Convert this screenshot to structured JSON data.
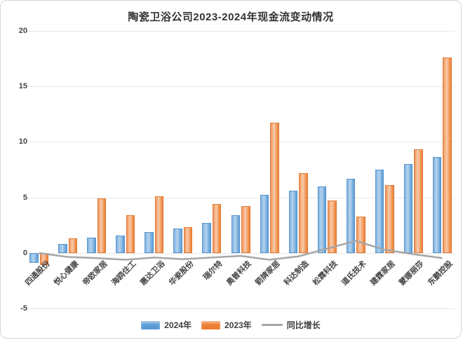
{
  "chart_data": {
    "type": "bar",
    "title": "陶瓷卫浴公司2023-2024年现金流变动情况",
    "categories": [
      "四通股份",
      "悦心健康",
      "帝欧家居",
      "海鸥住工",
      "惠达卫浴",
      "华瓷股份",
      "瑞尔特",
      "奥普科技",
      "箭牌家居",
      "科达制造",
      "松霖科技",
      "道氏技术",
      "建霖家居",
      "蒙娜丽莎",
      "东鹏控股"
    ],
    "series": [
      {
        "name": "2024年",
        "type": "bar",
        "color": "#5B9BD5",
        "values": [
          -0.9,
          0.8,
          1.4,
          1.6,
          1.9,
          2.2,
          2.7,
          3.4,
          5.2,
          5.6,
          6.0,
          6.7,
          7.5,
          8.0,
          8.6
        ]
      },
      {
        "name": "2023年",
        "type": "bar",
        "color": "#ED7D31",
        "values": [
          -1.1,
          1.3,
          4.9,
          3.4,
          5.1,
          2.3,
          4.4,
          4.2,
          11.7,
          7.2,
          4.7,
          3.3,
          6.1,
          9.3,
          17.6
        ]
      },
      {
        "name": "同比增长",
        "type": "line",
        "color": "#A6A6A6",
        "values": [
          0.0,
          -0.35,
          -0.45,
          -0.6,
          -0.4,
          -0.55,
          -0.4,
          -0.25,
          -0.6,
          -0.3,
          0.4,
          1.1,
          0.3,
          -0.1,
          -0.45
        ]
      }
    ],
    "ylim": [
      -5,
      20
    ],
    "yticks": [
      20,
      15,
      10,
      5,
      0,
      -5
    ],
    "grid": true,
    "legend_position": "bottom",
    "grid_color": "#E7E7E7",
    "text_color": "#404040"
  }
}
